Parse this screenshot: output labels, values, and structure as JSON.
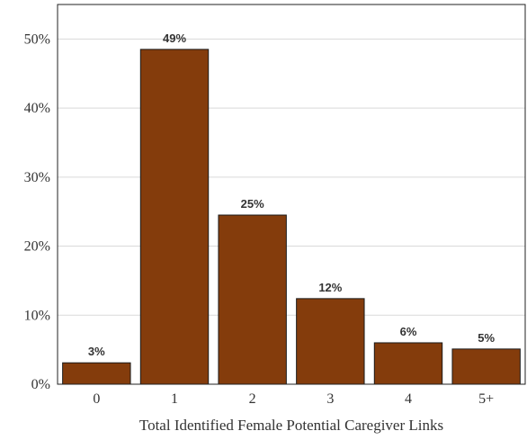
{
  "chart_data": {
    "type": "bar",
    "categories": [
      "0",
      "1",
      "2",
      "3",
      "4",
      "5+"
    ],
    "values": [
      3.1,
      48.5,
      24.5,
      12.4,
      6.0,
      5.1
    ],
    "data_labels": [
      "3%",
      "49%",
      "25%",
      "12%",
      "6%",
      "5%"
    ],
    "xlabel": "Total Identified Female Potential Caregiver Links",
    "ylabel": "",
    "ylim": [
      0,
      55
    ],
    "yticks": [
      0,
      10,
      20,
      30,
      40,
      50
    ],
    "ytick_labels": [
      "0%",
      "10%",
      "20%",
      "30%",
      "40%",
      "50%"
    ],
    "grid": true,
    "legend": "none",
    "colors": {
      "bar": "#843C0C",
      "bar_edge": "#1a1a1a",
      "grid": "#d9d9d9",
      "frame": "#222222"
    }
  }
}
